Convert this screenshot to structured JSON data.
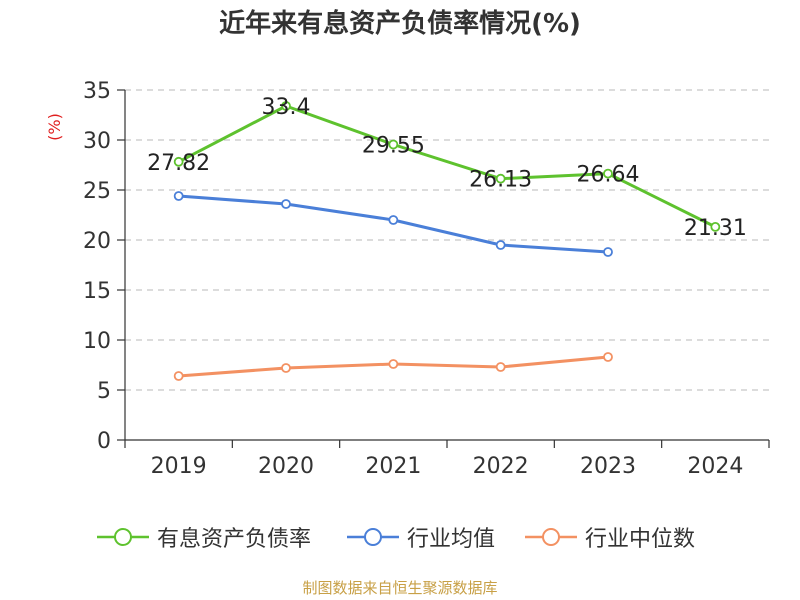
{
  "title": "近年来有息资产负债率情况(%)",
  "source": "制图数据来自恒生聚源数据库",
  "chart_data": {
    "type": "line",
    "title": "近年来有息资产负债率情况(%)",
    "xlabel": "",
    "ylabel": "(%)",
    "ylim": [
      0,
      35
    ],
    "yticks": [
      0,
      5,
      10,
      15,
      20,
      25,
      30,
      35
    ],
    "categories": [
      "2019",
      "2020",
      "2021",
      "2022",
      "2023",
      "2024"
    ],
    "grid": true,
    "legend_position": "bottom",
    "series": [
      {
        "name": "有息资产负债率",
        "color": "#5ec22e",
        "values": [
          27.82,
          33.4,
          29.55,
          26.13,
          26.64,
          21.31
        ],
        "labels": [
          "27.82",
          "33.4",
          "29.55",
          "26.13",
          "26.64",
          "21.31"
        ]
      },
      {
        "name": "行业均值",
        "color": "#4a7fd8",
        "values": [
          24.4,
          23.6,
          22.0,
          19.5,
          18.8,
          null
        ]
      },
      {
        "name": "行业中位数",
        "color": "#f39162",
        "values": [
          6.4,
          7.2,
          7.6,
          7.3,
          8.3,
          null
        ]
      }
    ]
  }
}
